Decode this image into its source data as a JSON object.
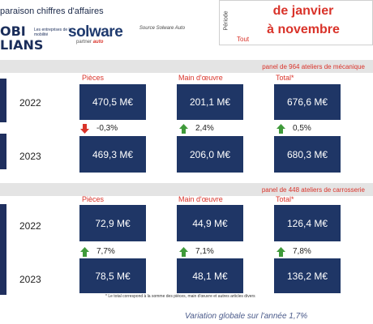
{
  "header": {
    "title": "paraison chiffres d'affaires",
    "logo_main": "OBI LIANS",
    "logo_sub": "Les entreprises de la mobilité",
    "solware_brand": "solware",
    "solware_sub_a": "partner",
    "solware_sub_b": "auto",
    "source": "Source Solware Auto",
    "periode_label": "Période",
    "periode_value_1": "de janvier",
    "periode_value_2": "à novembre",
    "tout": "Tout"
  },
  "sections": [
    {
      "panel": "panel de 964 ateliers de mécanique",
      "col_pieces": "Pièces",
      "col_main": "Main d'œuvre",
      "col_total": "Total*",
      "rows": [
        {
          "year": "2022",
          "pieces": "470,5 M€",
          "main": "201,1 M€",
          "total": "676,6 M€"
        },
        {
          "year": "2023",
          "pieces": "469,3 M€",
          "main": "206,0 M€",
          "total": "680,3 M€"
        }
      ],
      "variations": {
        "pieces": "-0,3%",
        "main": "2,4%",
        "total": "0,5%"
      }
    },
    {
      "panel": "panel de 448 ateliers de carrosserie",
      "col_pieces": "Pièces",
      "col_main": "Main d'œuvre",
      "col_total": "Total*",
      "rows": [
        {
          "year": "2022",
          "pieces": "72,9 M€",
          "main": "44,9 M€",
          "total": "126,4 M€"
        },
        {
          "year": "2023",
          "pieces": "78,5 M€",
          "main": "48,1 M€",
          "total": "136,2 M€"
        }
      ],
      "variations": {
        "pieces": "7,7%",
        "main": "7,1%",
        "total": "7,8%"
      }
    }
  ],
  "footnote": "* Le total correspond à la somme des pièces, main d'œuvre et autres articles divers",
  "variation_globale": "Variation globale sur l'année 1,7%",
  "colors": {
    "navy": "#1f3666",
    "red": "#d9332a",
    "green": "#3f9a3a"
  }
}
